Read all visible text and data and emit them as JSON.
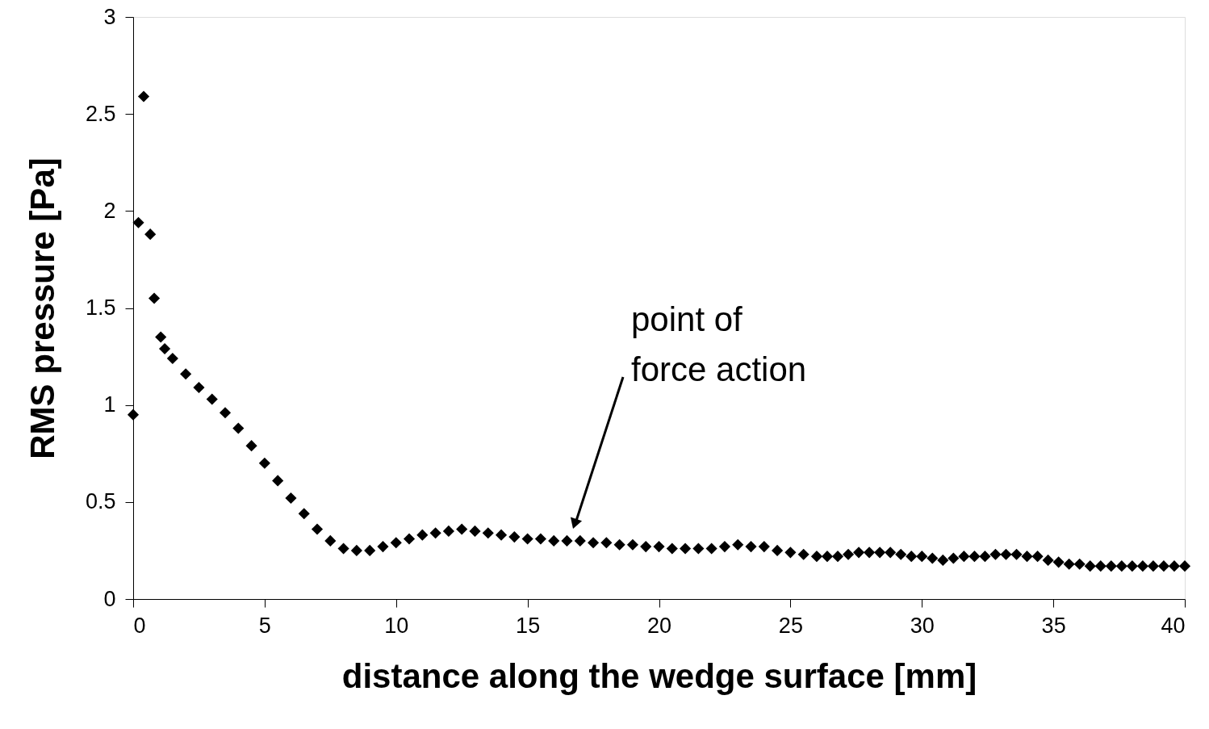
{
  "chart_data": {
    "type": "scatter",
    "xlabel": "distance along the wedge surface [mm]",
    "ylabel": "RMS pressure [Pa]",
    "xlim": [
      0,
      40
    ],
    "xticks": [
      0,
      5,
      10,
      15,
      20,
      25,
      30,
      35,
      40
    ],
    "ylim": [
      0,
      3
    ],
    "yticks": [
      0,
      0.5,
      1,
      1.5,
      2,
      2.5,
      3
    ],
    "grid": false,
    "marker": "diamond",
    "annotations": [
      "point of\nforce action"
    ],
    "series": [
      {
        "color": "#000000",
        "x": [
          0,
          0.2,
          0.4,
          0.65,
          0.8,
          1.05,
          1.2,
          1.5,
          2,
          2.5,
          3,
          3.5,
          4,
          4.5,
          5,
          5.5,
          6,
          6.5,
          7,
          7.5,
          8,
          8.5,
          9,
          9.5,
          10,
          10.5,
          11,
          11.5,
          12,
          12.5,
          13,
          13.5,
          14,
          14.5,
          15,
          15.5,
          16,
          16.5,
          17,
          17.5,
          18,
          18.5,
          19,
          19.5,
          20,
          20.5,
          21,
          21.5,
          22,
          22.5,
          23,
          23.5,
          24,
          24.5,
          25,
          25.5,
          26.0,
          26.4,
          26.8,
          27.2,
          27.6,
          28.0,
          28.4,
          28.8,
          29.2,
          29.6,
          30.0,
          30.4,
          30.8,
          31.2,
          31.6,
          32.0,
          32.4,
          32.8,
          33.2,
          33.6,
          34.0,
          34.4,
          34.8,
          35.2,
          35.6,
          36.0,
          36.4,
          36.8,
          37.2,
          37.6,
          38.0,
          38.4,
          38.8,
          39.2,
          39.6,
          40.0
        ],
        "values": [
          0.95,
          1.94,
          2.59,
          1.88,
          1.55,
          1.35,
          1.29,
          1.24,
          1.16,
          1.09,
          1.03,
          0.96,
          0.88,
          0.79,
          0.7,
          0.61,
          0.52,
          0.44,
          0.36,
          0.3,
          0.26,
          0.25,
          0.25,
          0.27,
          0.29,
          0.31,
          0.33,
          0.34,
          0.35,
          0.36,
          0.35,
          0.34,
          0.33,
          0.32,
          0.31,
          0.31,
          0.3,
          0.3,
          0.3,
          0.29,
          0.29,
          0.28,
          0.28,
          0.27,
          0.27,
          0.26,
          0.26,
          0.26,
          0.26,
          0.27,
          0.28,
          0.27,
          0.27,
          0.25,
          0.24,
          0.23,
          0.22,
          0.22,
          0.22,
          0.23,
          0.24,
          0.24,
          0.24,
          0.24,
          0.23,
          0.22,
          0.22,
          0.21,
          0.2,
          0.21,
          0.22,
          0.22,
          0.22,
          0.23,
          0.23,
          0.23,
          0.22,
          0.22,
          0.2,
          0.19,
          0.18,
          0.18,
          0.17,
          0.17,
          0.17,
          0.17,
          0.17,
          0.17,
          0.17,
          0.17,
          0.17,
          0.17
        ]
      }
    ]
  }
}
